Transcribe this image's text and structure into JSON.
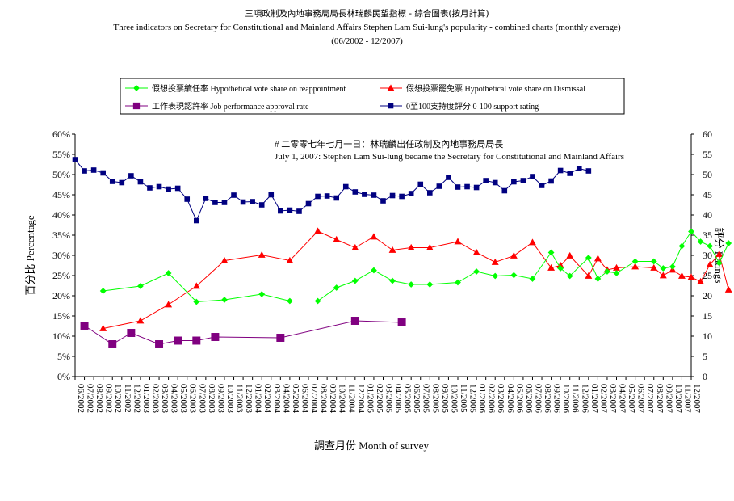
{
  "titles": {
    "line1": "三項政制及內地事務局局長林瑞麟民望指標 - 綜合圖表(按月計算)",
    "line2": "Three indicators on Secretary for Constitutional and Mainland Affairs Stephen Lam Sui-lung's popularity - combined charts (monthly average)",
    "line3": "(06/2002 - 12/2007)"
  },
  "chart_data": {
    "type": "line",
    "xlabel": "調查月份 Month of survey",
    "ylabel_left": "百分比 Percentage",
    "ylabel_right": "評分 Ratings",
    "ylim_left": [
      0,
      60
    ],
    "ylim_right": [
      0,
      60
    ],
    "yticks_left": [
      "0%",
      "5%",
      "10%",
      "15%",
      "20%",
      "25%",
      "30%",
      "35%",
      "40%",
      "45%",
      "50%",
      "55%",
      "60%"
    ],
    "yticks_right": [
      "0",
      "5",
      "10",
      "15",
      "20",
      "25",
      "30",
      "35",
      "40",
      "45",
      "50",
      "55",
      "60"
    ],
    "grid": false,
    "legend_position": "top",
    "annotation": {
      "line1": "# 二零零七年七月一日：林瑞麟出任政制及內地事務局局長",
      "line2": "July 1, 2007: Stephen Lam Sui-lung became the Secretary for Constitutional and Mainland Affairs"
    },
    "x": [
      "06/2002",
      "07/2002",
      "08/2002",
      "09/2002",
      "10/2002",
      "11/2002",
      "12/2002",
      "01/2003",
      "02/2003",
      "03/2003",
      "04/2003",
      "05/2003",
      "06/2003",
      "07/2003",
      "08/2003",
      "09/2003",
      "10/2003",
      "11/2003",
      "12/2003",
      "01/2004",
      "02/2004",
      "03/2004",
      "04/2004",
      "05/2004",
      "06/2004",
      "07/2004",
      "08/2004",
      "09/2004",
      "10/2004",
      "11/2004",
      "12/2004",
      "01/2005",
      "02/2005",
      "03/2005",
      "04/2005",
      "05/2005",
      "06/2005",
      "07/2005",
      "08/2005",
      "09/2005",
      "10/2005",
      "11/2005",
      "12/2005",
      "01/2006",
      "02/2006",
      "03/2006",
      "04/2006",
      "05/2006",
      "06/2006",
      "07/2006",
      "08/2006",
      "09/2006",
      "10/2006",
      "11/2006",
      "12/2006",
      "01/2007",
      "02/2007",
      "03/2007",
      "04/2007",
      "05/2007",
      "06/2007",
      "07/2007",
      "08/2007",
      "09/2007",
      "10/2007",
      "11/2007",
      "12/2007"
    ],
    "x_tick_labels": [
      "06/2002",
      "07/2002",
      "08/2002",
      "09/2002",
      "10/2002",
      "11/2002",
      "12/2002",
      "01/2003",
      "02/2003",
      "03/2003",
      "04/2003",
      "05/2003",
      "06/2003",
      "07/2003",
      "08/2003",
      "09/2003",
      "10/2003",
      "11/2003",
      "12/2003",
      "01/2004",
      "02/2004",
      "03/2004",
      "04/2004",
      "05/2004",
      "06/2004",
      "07/2004",
      "08/2004",
      "09/2004",
      "10/2004",
      "11/2004",
      "12/2004",
      "01/2005",
      "02/2005",
      "03/2005",
      "04/2005",
      "05/2005",
      "06/2005",
      "07/2005",
      "08/2005",
      "09/2005",
      "10/2005",
      "11/2005",
      "12/2005",
      "01/2006",
      "02/2006",
      "03/2006",
      "04/2006",
      "05/2006",
      "06/2006",
      "07/2006",
      "08/2006",
      "09/2006",
      "10/2006",
      "11/2006",
      "12/2006",
      "01/2007",
      "02/2007",
      "03/2007",
      "04/2007",
      "05/2007",
      "06/2007",
      "07/2007",
      "08/2007",
      "09/2007",
      "10/2007",
      "11/2007",
      "12/2007"
    ],
    "series": [
      {
        "name": "假想投票續任率 Hypothetical vote share on reappointment",
        "axis": "left",
        "color": "#00ff00",
        "marker": "diamond",
        "points": [
          [
            3,
            21.2
          ],
          [
            7,
            22.4
          ],
          [
            10,
            25.6
          ],
          [
            13,
            18.5
          ],
          [
            16,
            19.0
          ],
          [
            20,
            20.4
          ],
          [
            23,
            18.7
          ],
          [
            26,
            18.7
          ],
          [
            28,
            22.0
          ],
          [
            30,
            23.7
          ],
          [
            32,
            26.3
          ],
          [
            34,
            23.7
          ],
          [
            36,
            22.8
          ],
          [
            38,
            22.8
          ],
          [
            41,
            23.3
          ],
          [
            43,
            26.0
          ],
          [
            45,
            24.9
          ],
          [
            47,
            25.1
          ],
          [
            49,
            24.2
          ],
          [
            51,
            30.7
          ],
          [
            52,
            26.8
          ],
          [
            53,
            24.9
          ],
          [
            55,
            29.4
          ],
          [
            56,
            24.2
          ],
          [
            57,
            26.0
          ],
          [
            58,
            25.6
          ],
          [
            60,
            28.5
          ],
          [
            62,
            28.5
          ],
          [
            63,
            26.8
          ],
          [
            64,
            27.2
          ],
          [
            65,
            32.3
          ],
          [
            66,
            35.9
          ],
          [
            67,
            33.4
          ],
          [
            68,
            32.3
          ],
          [
            69,
            28.1
          ],
          [
            70,
            33.0
          ]
        ]
      },
      {
        "name": "假想投票罷免票 Hypothetical vote share on Dismissal",
        "axis": "left",
        "color": "#ff0000",
        "marker": "triangle",
        "points": [
          [
            3,
            11.9
          ],
          [
            7,
            13.8
          ],
          [
            10,
            17.8
          ],
          [
            13,
            22.4
          ],
          [
            16,
            28.7
          ],
          [
            20,
            30.1
          ],
          [
            23,
            28.7
          ],
          [
            26,
            36.0
          ],
          [
            28,
            33.9
          ],
          [
            30,
            31.9
          ],
          [
            32,
            34.6
          ],
          [
            34,
            31.3
          ],
          [
            36,
            31.9
          ],
          [
            38,
            31.9
          ],
          [
            41,
            33.4
          ],
          [
            43,
            30.7
          ],
          [
            45,
            28.3
          ],
          [
            47,
            29.9
          ],
          [
            49,
            33.2
          ],
          [
            51,
            26.9
          ],
          [
            52,
            27.5
          ],
          [
            53,
            29.9
          ],
          [
            55,
            24.9
          ],
          [
            56,
            29.2
          ],
          [
            57,
            26.4
          ],
          [
            58,
            26.9
          ],
          [
            60,
            27.2
          ],
          [
            62,
            26.9
          ],
          [
            63,
            25.0
          ],
          [
            64,
            26.4
          ],
          [
            65,
            24.9
          ],
          [
            66,
            24.6
          ],
          [
            67,
            23.5
          ],
          [
            68,
            27.7
          ],
          [
            69,
            30.3
          ],
          [
            70,
            21.5
          ]
        ]
      },
      {
        "name": "工作表現認許率 Job performance approval rate",
        "axis": "left",
        "color": "#800080",
        "marker": "square",
        "points": [
          [
            1,
            12.6
          ],
          [
            4,
            8.0
          ],
          [
            6,
            10.8
          ],
          [
            9,
            8.0
          ],
          [
            11,
            8.9
          ],
          [
            13,
            8.9
          ],
          [
            15,
            9.8
          ],
          [
            22,
            9.6
          ],
          [
            30,
            13.8
          ],
          [
            35,
            13.4
          ]
        ]
      },
      {
        "name": "0至100支持度評分 0-100 support rating",
        "axis": "right",
        "color": "#000080",
        "marker": "square",
        "points": [
          [
            0,
            53.7
          ],
          [
            1,
            50.9
          ],
          [
            2,
            51.1
          ],
          [
            3,
            50.4
          ],
          [
            4,
            48.3
          ],
          [
            5,
            48.0
          ],
          [
            6,
            49.7
          ],
          [
            7,
            48.2
          ],
          [
            8,
            46.7
          ],
          [
            9,
            47.0
          ],
          [
            10,
            46.4
          ],
          [
            11,
            46.6
          ],
          [
            12,
            43.9
          ],
          [
            13,
            38.6
          ],
          [
            14,
            44.1
          ],
          [
            15,
            43.1
          ],
          [
            16,
            43.1
          ],
          [
            17,
            44.9
          ],
          [
            18,
            43.2
          ],
          [
            19,
            43.3
          ],
          [
            20,
            42.5
          ],
          [
            21,
            45.0
          ],
          [
            22,
            41.0
          ],
          [
            23,
            41.2
          ],
          [
            24,
            40.9
          ],
          [
            25,
            42.8
          ],
          [
            26,
            44.6
          ],
          [
            27,
            44.7
          ],
          [
            28,
            44.2
          ],
          [
            29,
            47.0
          ],
          [
            30,
            45.7
          ],
          [
            31,
            45.1
          ],
          [
            32,
            44.9
          ],
          [
            33,
            43.5
          ],
          [
            34,
            44.8
          ],
          [
            35,
            44.6
          ],
          [
            36,
            45.3
          ],
          [
            37,
            47.6
          ],
          [
            38,
            45.5
          ],
          [
            39,
            47.1
          ],
          [
            40,
            49.3
          ],
          [
            41,
            46.9
          ],
          [
            42,
            47.0
          ],
          [
            43,
            46.8
          ],
          [
            44,
            48.5
          ],
          [
            45,
            48.0
          ],
          [
            46,
            46.0
          ],
          [
            47,
            48.2
          ],
          [
            48,
            48.5
          ],
          [
            49,
            49.5
          ],
          [
            50,
            47.3
          ],
          [
            51,
            48.4
          ],
          [
            52,
            51.0
          ],
          [
            53,
            50.3
          ],
          [
            54,
            51.5
          ],
          [
            55,
            50.9
          ]
        ]
      }
    ]
  }
}
